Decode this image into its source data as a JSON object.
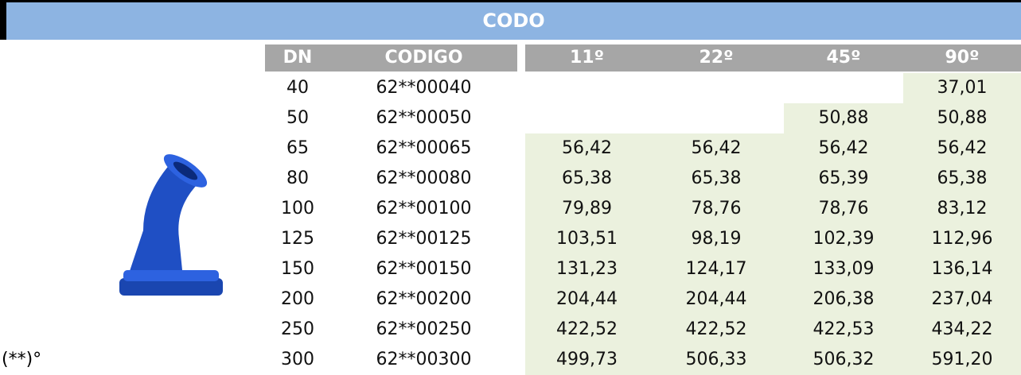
{
  "header": {
    "title": "CODO"
  },
  "table": {
    "columns": [
      "DN",
      "CODIGO",
      "11º",
      "22º",
      "45º",
      "90º"
    ],
    "rows": [
      [
        "40",
        "62**00040",
        null,
        null,
        null,
        "37,01"
      ],
      [
        "50",
        "62**00050",
        null,
        null,
        "50,88",
        "50,88"
      ],
      [
        "65",
        "62**00065",
        "56,42",
        "56,42",
        "56,42",
        "56,42"
      ],
      [
        "80",
        "62**00080",
        "65,38",
        "65,38",
        "65,39",
        "65,38"
      ],
      [
        "100",
        "62**00100",
        "79,89",
        "78,76",
        "78,76",
        "83,12"
      ],
      [
        "125",
        "62**00125",
        "103,51",
        "98,19",
        "102,39",
        "112,96"
      ],
      [
        "150",
        "62**00150",
        "131,23",
        "124,17",
        "133,09",
        "136,14"
      ],
      [
        "200",
        "62**00200",
        "204,44",
        "204,44",
        "206,38",
        "237,04"
      ],
      [
        "250",
        "62**00250",
        "422,52",
        "422,52",
        "422,53",
        "434,22"
      ],
      [
        "300",
        "62**00300",
        "499,73",
        "506,33",
        "506,32",
        "591,20"
      ]
    ]
  },
  "footnote": "(**)°"
}
